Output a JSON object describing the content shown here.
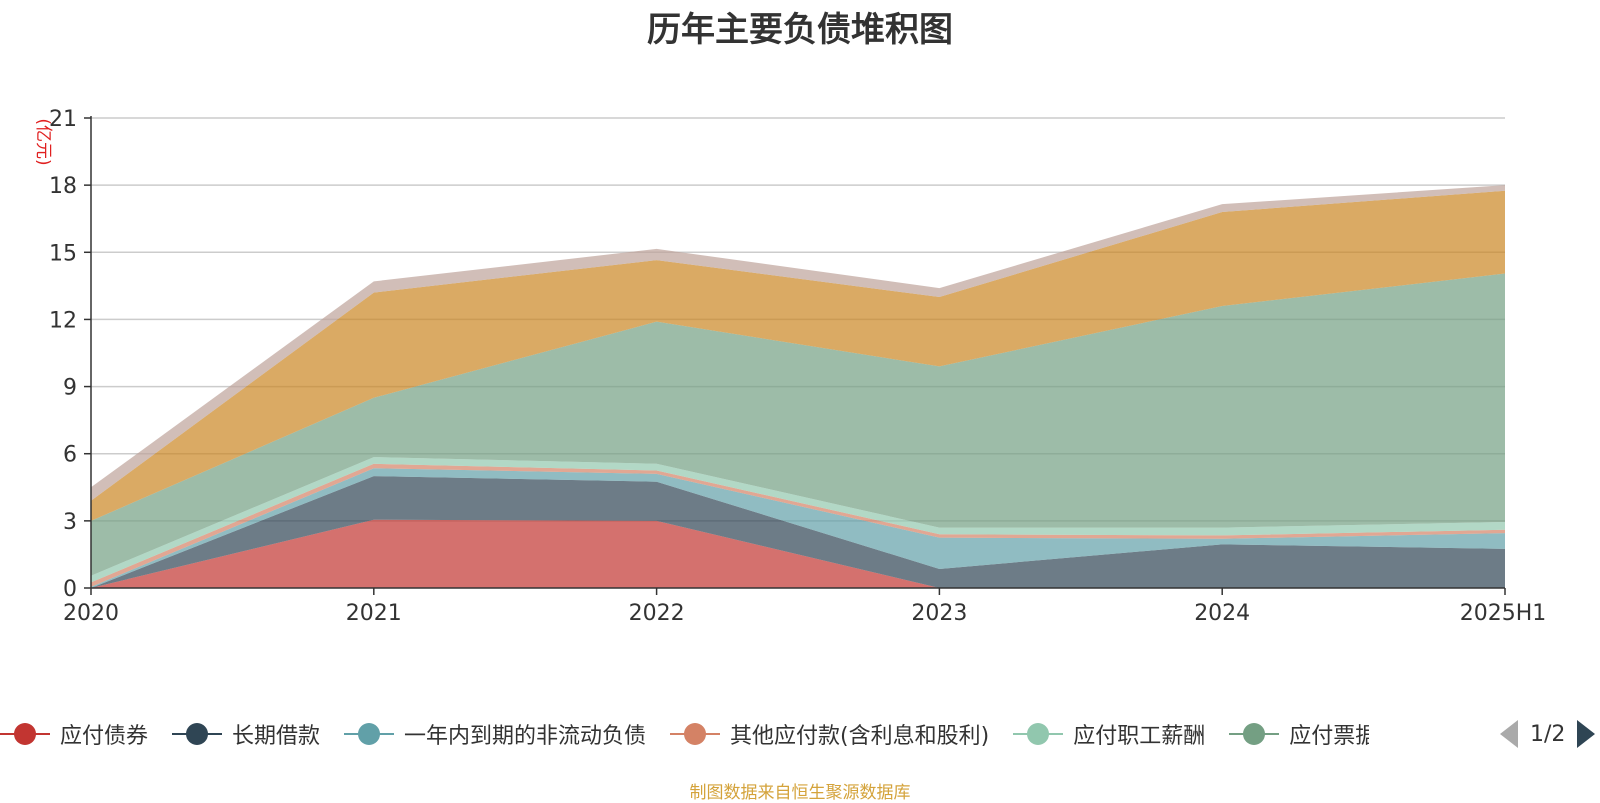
{
  "chart_data": {
    "type": "area",
    "stacked": true,
    "title": "历年主要负债堆积图",
    "ylabel": "(亿元)",
    "ylim": [
      0,
      21
    ],
    "yticks": [
      0,
      3,
      6,
      9,
      12,
      15,
      18,
      21
    ],
    "categories": [
      "2020",
      "2021",
      "2022",
      "2023",
      "2024",
      "2025H1"
    ],
    "grid": true,
    "legend_position": "bottom",
    "series": [
      {
        "name": "应付债券",
        "color": "#c23531",
        "values": [
          0,
          3.05,
          3.0,
          0,
          0,
          0
        ]
      },
      {
        "name": "长期借款",
        "color": "#2f4554",
        "values": [
          0,
          1.95,
          1.75,
          0.85,
          1.95,
          1.75
        ]
      },
      {
        "name": "一年内到期的非流动负债",
        "color": "#61a0a8",
        "values": [
          0.05,
          0.35,
          0.35,
          1.4,
          0.25,
          0.7
        ]
      },
      {
        "name": "其他应付款(含利息和股利)",
        "color": "#d48265",
        "values": [
          0.2,
          0.2,
          0.15,
          0.15,
          0.15,
          0.15
        ]
      },
      {
        "name": "应付职工薪酬",
        "color": "#91c7ae",
        "values": [
          0.3,
          0.3,
          0.3,
          0.3,
          0.35,
          0.35
        ]
      },
      {
        "name": "应付票据及应付账款",
        "color": "#749f83",
        "values": [
          2.45,
          2.65,
          6.35,
          7.2,
          9.9,
          11.1
        ]
      },
      {
        "name": "",
        "color": "#ca8622",
        "values": [
          0.9,
          4.7,
          2.75,
          3.1,
          4.2,
          3.7
        ]
      },
      {
        "name": "",
        "color": "#bda29a",
        "values": [
          0.6,
          0.5,
          0.5,
          0.4,
          0.35,
          0.25
        ]
      }
    ]
  },
  "legend": {
    "items": [
      {
        "label": "应付债券",
        "color": "#c23531"
      },
      {
        "label": "长期借款",
        "color": "#2f4554"
      },
      {
        "label": "一年内到期的非流动负债",
        "color": "#61a0a8"
      },
      {
        "label": "其他应付款(含利息和股利)",
        "color": "#d48265"
      },
      {
        "label": "应付职工薪酬",
        "color": "#91c7ae"
      },
      {
        "label": "应付票据及应",
        "color": "#749f83"
      }
    ],
    "page": "1/2"
  },
  "source_note": "制图数据来自恒生聚源数据库"
}
